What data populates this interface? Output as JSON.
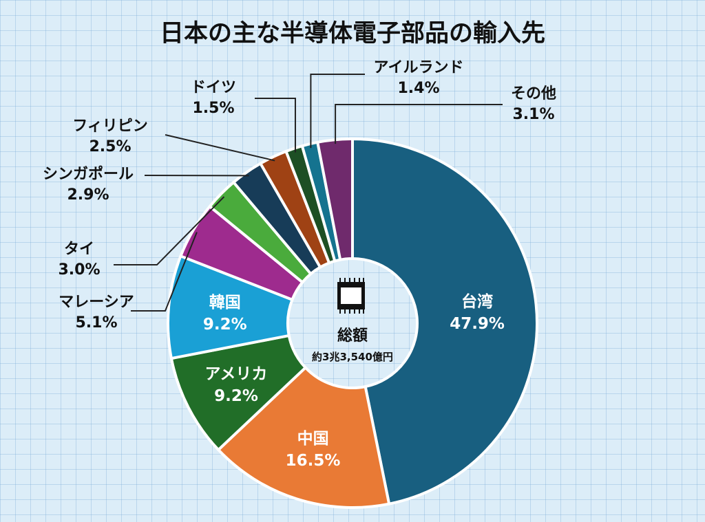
{
  "chart_data": {
    "type": "pie",
    "title": "日本の主な半導体電子部品の輸入先",
    "center": {
      "label": "総額",
      "value": "約3兆3,540億円"
    },
    "slices": [
      {
        "name": "台湾",
        "value": 47.9,
        "label": "47.9%",
        "color": "#185f80"
      },
      {
        "name": "中国",
        "value": 16.5,
        "label": "16.5%",
        "color": "#e97a35"
      },
      {
        "name": "アメリカ",
        "value": 9.2,
        "label": "9.2%",
        "color": "#216e28"
      },
      {
        "name": "韓国",
        "value": 9.2,
        "label": "9.2%",
        "color": "#1aa0d5"
      },
      {
        "name": "マレーシア",
        "value": 5.1,
        "label": "5.1%",
        "color": "#9e2b8e"
      },
      {
        "name": "タイ",
        "value": 3.0,
        "label": "3.0%",
        "color": "#4aab3c"
      },
      {
        "name": "シンガポール",
        "value": 2.9,
        "label": "2.9%",
        "color": "#173c58"
      },
      {
        "name": "フィリピン",
        "value": 2.5,
        "label": "2.5%",
        "color": "#9f4214"
      },
      {
        "name": "ドイツ",
        "value": 1.5,
        "label": "1.5%",
        "color": "#1d4f24"
      },
      {
        "name": "アイルランド",
        "value": 1.4,
        "label": "1.4%",
        "color": "#15738f"
      },
      {
        "name": "その他",
        "value": 3.1,
        "label": "3.1%",
        "color": "#6f2a6c"
      }
    ]
  }
}
